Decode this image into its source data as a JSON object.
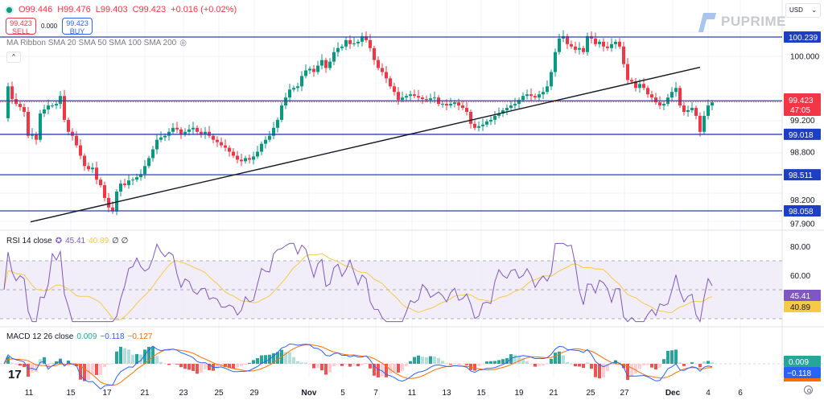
{
  "header": {
    "ohlc": {
      "open": "O99.446",
      "high": "H99.476",
      "low": "L99.403",
      "close": "C99.423",
      "change": "+0.016 (+0.02%)"
    },
    "sell": {
      "price": "99.423",
      "label": "SELL"
    },
    "spread": "0.000",
    "buy": {
      "price": "99.423",
      "label": "BUY"
    },
    "ma_ribbon_label": "MA Ribbon SMA 20 SMA 50 SMA 100 SMA 200",
    "collapse_icon": "^",
    "currency": "USD",
    "currency_chevron": "⌄"
  },
  "watermark": {
    "brand": "PUPRIME"
  },
  "rsi_legend": {
    "title": "RSI 14 close",
    "rsi": "45.41",
    "rsi_ma": "40.89",
    "extra": "∅ ∅"
  },
  "macd_legend": {
    "title": "MACD 12 26 close",
    "hist": "0.009",
    "macd": "−0.118",
    "signal": "−0.127"
  },
  "colors": {
    "up": "#089981",
    "down": "#f23645",
    "level": "#2a3ec0",
    "level_tag": "#1e3fc4",
    "trend": "#131722",
    "rsi": "#7e57c2",
    "rsi_ma": "#f7c948",
    "rsi_band": "#ede7f6",
    "macd": "#2962ff",
    "signal": "#ff6d00",
    "hist_up": "#26a69a",
    "hist_up_light": "#b2dfdb",
    "hist_dn": "#ef5350",
    "hist_dn_light": "#ffcdd2",
    "grid": "#f0f3fa",
    "axis_text": "#131722"
  },
  "chart_data": {
    "type": "candlestick",
    "title": "USD Index (DXY) — candlestick with horizontal levels, trendline, RSI and MACD",
    "price_axis": {
      "ticks": [
        "100.000",
        "99.200",
        "98.800",
        "98.200",
        "97.900"
      ],
      "range": [
        97.85,
        100.42
      ]
    },
    "levels": [
      100.239,
      99.439,
      99.018,
      98.511,
      98.058
    ],
    "current_price": {
      "value": "99.423",
      "countdown": "47:05"
    },
    "x_labels": [
      "11",
      "15",
      "17",
      "21",
      "23",
      "25",
      "29",
      "Nov",
      "5",
      "7",
      "11",
      "13",
      "15",
      "19",
      "21",
      "25",
      "27",
      "Dec",
      "4",
      "6"
    ],
    "x_label_pos": [
      36,
      88,
      133,
      180,
      228,
      272,
      316,
      384,
      426,
      467,
      512,
      555,
      598,
      645,
      688,
      734,
      776,
      836,
      880,
      920
    ],
    "trendline": {
      "from": [
        38,
        97.92
      ],
      "to": [
        870,
        99.86
      ]
    },
    "candles_close_path": [
      [
        5,
        99.22
      ],
      [
        10,
        99.62
      ],
      [
        15,
        99.46
      ],
      [
        20,
        99.4
      ],
      [
        25,
        99.36
      ],
      [
        30,
        99.3
      ],
      [
        35,
        99.0
      ],
      [
        40,
        99.02
      ],
      [
        45,
        98.95
      ],
      [
        50,
        99.28
      ],
      [
        55,
        99.33
      ],
      [
        60,
        99.38
      ],
      [
        65,
        99.38
      ],
      [
        70,
        99.4
      ],
      [
        75,
        99.5
      ],
      [
        80,
        99.2
      ],
      [
        85,
        99.05
      ],
      [
        90,
        99.0
      ],
      [
        95,
        98.88
      ],
      [
        100,
        98.75
      ],
      [
        105,
        98.62
      ],
      [
        110,
        98.58
      ],
      [
        115,
        98.6
      ],
      [
        120,
        98.45
      ],
      [
        125,
        98.38
      ],
      [
        130,
        98.22
      ],
      [
        135,
        98.1
      ],
      [
        140,
        98.05
      ],
      [
        145,
        98.3
      ],
      [
        150,
        98.4
      ],
      [
        155,
        98.38
      ],
      [
        160,
        98.44
      ],
      [
        165,
        98.45
      ],
      [
        170,
        98.48
      ],
      [
        175,
        98.52
      ],
      [
        180,
        98.62
      ],
      [
        185,
        98.72
      ],
      [
        190,
        98.83
      ],
      [
        195,
        98.95
      ],
      [
        200,
        98.98
      ],
      [
        205,
        99.0
      ],
      [
        210,
        99.05
      ],
      [
        215,
        99.1
      ],
      [
        220,
        99.08
      ],
      [
        225,
        99.02
      ],
      [
        230,
        99.05
      ],
      [
        235,
        99.08
      ],
      [
        240,
        99.1
      ],
      [
        245,
        99.05
      ],
      [
        250,
        99.02
      ],
      [
        255,
        99.05
      ],
      [
        260,
        99.0
      ],
      [
        265,
        98.95
      ],
      [
        270,
        98.92
      ],
      [
        275,
        98.88
      ],
      [
        280,
        98.85
      ],
      [
        285,
        98.8
      ],
      [
        290,
        98.75
      ],
      [
        295,
        98.7
      ],
      [
        300,
        98.68
      ],
      [
        305,
        98.72
      ],
      [
        310,
        98.7
      ],
      [
        315,
        98.74
      ],
      [
        320,
        98.8
      ],
      [
        325,
        98.9
      ],
      [
        330,
        98.95
      ],
      [
        335,
        99.0
      ],
      [
        340,
        99.1
      ],
      [
        345,
        99.2
      ],
      [
        350,
        99.38
      ],
      [
        355,
        99.48
      ],
      [
        360,
        99.58
      ],
      [
        365,
        99.6
      ],
      [
        370,
        99.62
      ],
      [
        375,
        99.75
      ],
      [
        380,
        99.82
      ],
      [
        385,
        99.84
      ],
      [
        390,
        99.8
      ],
      [
        395,
        99.88
      ],
      [
        400,
        99.95
      ],
      [
        405,
        99.85
      ],
      [
        410,
        99.93
      ],
      [
        415,
        100.05
      ],
      [
        420,
        100.1
      ],
      [
        425,
        100.12
      ],
      [
        430,
        100.2
      ],
      [
        435,
        100.15
      ],
      [
        440,
        100.16
      ],
      [
        445,
        100.18
      ],
      [
        450,
        100.25
      ],
      [
        455,
        100.2
      ],
      [
        460,
        100.1
      ],
      [
        465,
        99.95
      ],
      [
        470,
        99.85
      ],
      [
        475,
        99.8
      ],
      [
        480,
        99.72
      ],
      [
        485,
        99.62
      ],
      [
        490,
        99.55
      ],
      [
        495,
        99.45
      ],
      [
        500,
        99.48
      ],
      [
        505,
        99.5
      ],
      [
        510,
        99.52
      ],
      [
        515,
        99.5
      ],
      [
        520,
        99.48
      ],
      [
        525,
        99.46
      ],
      [
        530,
        99.45
      ],
      [
        535,
        99.47
      ],
      [
        540,
        99.48
      ],
      [
        545,
        99.4
      ],
      [
        550,
        99.4
      ],
      [
        555,
        99.38
      ],
      [
        560,
        99.4
      ],
      [
        565,
        99.42
      ],
      [
        570,
        99.38
      ],
      [
        575,
        99.35
      ],
      [
        580,
        99.3
      ],
      [
        585,
        99.15
      ],
      [
        590,
        99.1
      ],
      [
        595,
        99.12
      ],
      [
        600,
        99.14
      ],
      [
        605,
        99.18
      ],
      [
        610,
        99.2
      ],
      [
        615,
        99.25
      ],
      [
        620,
        99.28
      ],
      [
        625,
        99.32
      ],
      [
        630,
        99.35
      ],
      [
        635,
        99.38
      ],
      [
        640,
        99.4
      ],
      [
        645,
        99.45
      ],
      [
        650,
        99.5
      ],
      [
        655,
        99.52
      ],
      [
        660,
        99.5
      ],
      [
        665,
        99.48
      ],
      [
        670,
        99.52
      ],
      [
        675,
        99.55
      ],
      [
        680,
        99.62
      ],
      [
        685,
        99.8
      ],
      [
        690,
        100.05
      ],
      [
        695,
        100.22
      ],
      [
        700,
        100.25
      ],
      [
        705,
        100.15
      ],
      [
        710,
        100.12
      ],
      [
        715,
        100.08
      ],
      [
        720,
        100.1
      ],
      [
        725,
        100.05
      ],
      [
        730,
        100.25
      ],
      [
        735,
        100.22
      ],
      [
        740,
        100.15
      ],
      [
        745,
        100.18
      ],
      [
        750,
        100.12
      ],
      [
        755,
        100.1
      ],
      [
        760,
        100.15
      ],
      [
        765,
        100.18
      ],
      [
        770,
        100.12
      ],
      [
        775,
        99.9
      ],
      [
        780,
        99.7
      ],
      [
        785,
        99.68
      ],
      [
        790,
        99.6
      ],
      [
        795,
        99.65
      ],
      [
        800,
        99.6
      ],
      [
        805,
        99.52
      ],
      [
        810,
        99.48
      ],
      [
        815,
        99.42
      ],
      [
        820,
        99.38
      ],
      [
        825,
        99.4
      ],
      [
        830,
        99.48
      ],
      [
        835,
        99.55
      ],
      [
        840,
        99.6
      ],
      [
        845,
        99.38
      ],
      [
        850,
        99.3
      ],
      [
        855,
        99.32
      ],
      [
        860,
        99.35
      ],
      [
        865,
        99.25
      ],
      [
        870,
        99.05
      ],
      [
        875,
        99.25
      ],
      [
        880,
        99.38
      ],
      [
        885,
        99.42
      ]
    ],
    "rsi": {
      "ticks": [
        "80.00",
        "60.00"
      ],
      "upper": 70,
      "lower": 30,
      "mid": 50,
      "last": 45.41,
      "ma_last": 40.89
    },
    "macd": {
      "hist": 0.009,
      "macd": -0.118,
      "signal": -0.127
    }
  }
}
